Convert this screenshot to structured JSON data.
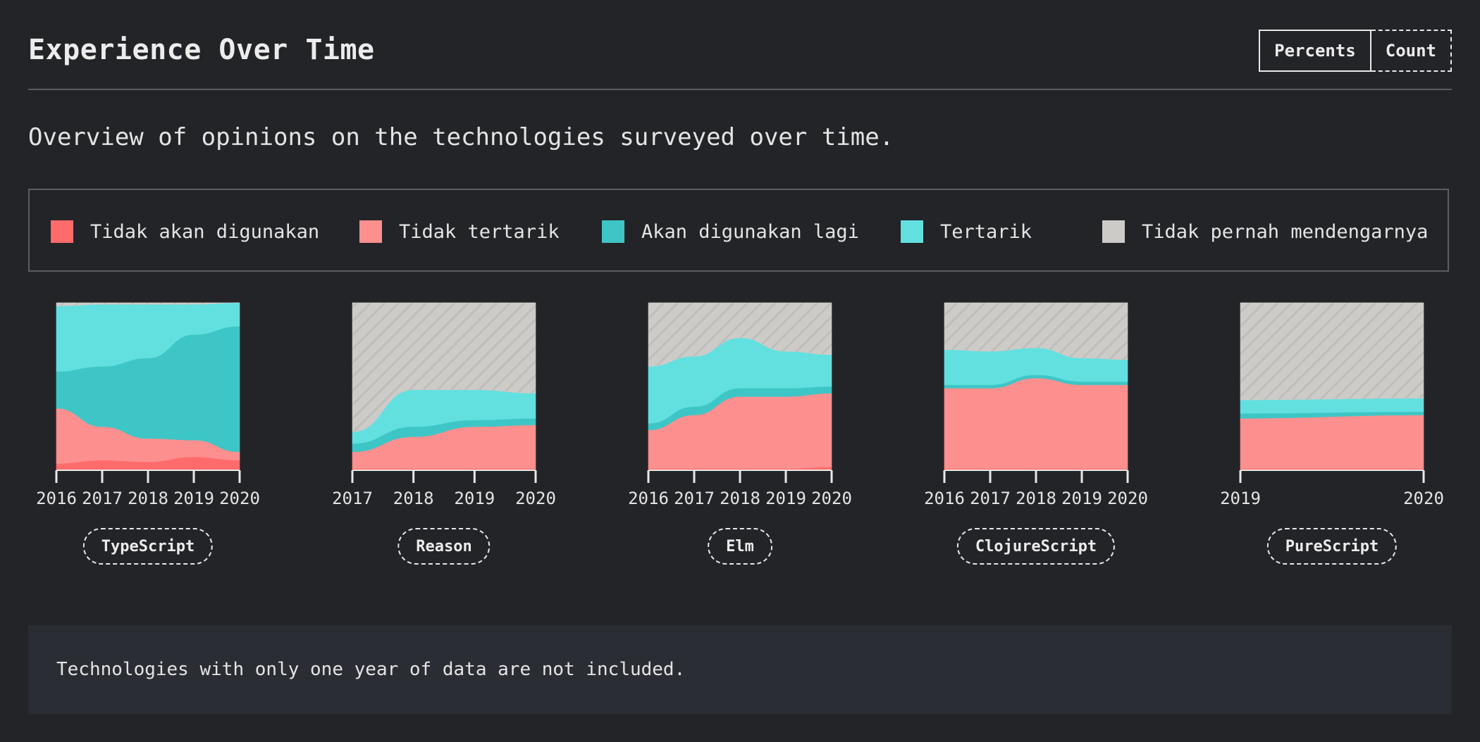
{
  "header": {
    "title": "Experience Over Time",
    "toggle": {
      "percents_label": "Percents",
      "count_label": "Count",
      "active": "percents"
    }
  },
  "description": "Overview of opinions on the technologies surveyed over time.",
  "legend": [
    {
      "label": "Tidak akan digunakan",
      "color": "#ff6b6b"
    },
    {
      "label": "Tidak tertarik",
      "color": "#fd8f8f"
    },
    {
      "label": "Akan digunakan lagi",
      "color": "#3ec6c6"
    },
    {
      "label": "Tertarik",
      "color": "#62e0e0"
    },
    {
      "label": "Tidak pernah mendengarnya",
      "color": "#cccbc8"
    }
  ],
  "chart_data": {
    "type": "area",
    "stacked": true,
    "normalized": true,
    "ylim": [
      0,
      100
    ],
    "series_order": [
      "Tidak akan digunakan",
      "Tidak tertarik",
      "Akan digunakan lagi",
      "Tertarik",
      "Tidak pernah mendengarnya"
    ],
    "charts": [
      {
        "name": "TypeScript",
        "years": [
          "2016",
          "2017",
          "2018",
          "2019",
          "2020"
        ],
        "series": [
          {
            "name": "Tidak akan digunakan",
            "values": [
              4,
              6,
              5,
              8,
              6
            ]
          },
          {
            "name": "Tidak tertarik",
            "values": [
              33,
              20,
              14,
              10,
              5
            ]
          },
          {
            "name": "Akan digunakan lagi",
            "values": [
              22,
              36,
              48,
              63,
              75
            ]
          },
          {
            "name": "Tertarik",
            "values": [
              39,
              37,
              32,
              18,
              14
            ]
          },
          {
            "name": "Tidak pernah mendengarnya",
            "values": [
              2,
              1,
              1,
              1,
              0
            ]
          }
        ]
      },
      {
        "name": "Reason",
        "years": [
          "2017",
          "2018",
          "2019",
          "2020"
        ],
        "series": [
          {
            "name": "Tidak akan digunakan",
            "values": [
              1,
              1,
              1,
              1
            ]
          },
          {
            "name": "Tidak tertarik",
            "values": [
              10,
              19,
              25,
              26
            ]
          },
          {
            "name": "Akan digunakan lagi",
            "values": [
              5,
              6,
              4,
              4
            ]
          },
          {
            "name": "Tertarik",
            "values": [
              7,
              22,
              18,
              15
            ]
          },
          {
            "name": "Tidak pernah mendengarnya",
            "values": [
              77,
              52,
              52,
              54
            ]
          }
        ]
      },
      {
        "name": "Elm",
        "years": [
          "2016",
          "2017",
          "2018",
          "2019",
          "2020"
        ],
        "series": [
          {
            "name": "Tidak akan digunakan",
            "values": [
              1,
              1,
              1,
              1,
              2
            ]
          },
          {
            "name": "Tidak tertarik",
            "values": [
              23,
              32,
              43,
              43,
              44
            ]
          },
          {
            "name": "Akan digunakan lagi",
            "values": [
              4,
              5,
              5,
              5,
              4
            ]
          },
          {
            "name": "Tertarik",
            "values": [
              34,
              30,
              30,
              22,
              19
            ]
          },
          {
            "name": "Tidak pernah mendengarnya",
            "values": [
              38,
              32,
              21,
              29,
              31
            ]
          }
        ]
      },
      {
        "name": "ClojureScript",
        "years": [
          "2016",
          "2017",
          "2018",
          "2019",
          "2020"
        ],
        "series": [
          {
            "name": "Tidak akan digunakan",
            "values": [
              1,
              1,
              1,
              1,
              1
            ]
          },
          {
            "name": "Tidak tertarik",
            "values": [
              48,
              48,
              54,
              50,
              50
            ]
          },
          {
            "name": "Akan digunakan lagi",
            "values": [
              2,
              2,
              2,
              2,
              2
            ]
          },
          {
            "name": "Tertarik",
            "values": [
              21,
              20,
              16,
              14,
              13
            ]
          },
          {
            "name": "Tidak pernah mendengarnya",
            "values": [
              28,
              29,
              27,
              33,
              34
            ]
          }
        ]
      },
      {
        "name": "PureScript",
        "years": [
          "2019",
          "2020"
        ],
        "series": [
          {
            "name": "Tidak akan digunakan",
            "values": [
              1,
              1
            ]
          },
          {
            "name": "Tidak tertarik",
            "values": [
              30,
              32
            ]
          },
          {
            "name": "Akan digunakan lagi",
            "values": [
              3,
              2
            ]
          },
          {
            "name": "Tertarik",
            "values": [
              8,
              8
            ]
          },
          {
            "name": "Tidak pernah mendengarnya",
            "values": [
              58,
              57
            ]
          }
        ]
      }
    ]
  },
  "note": "Technologies with only one year of data are not included."
}
